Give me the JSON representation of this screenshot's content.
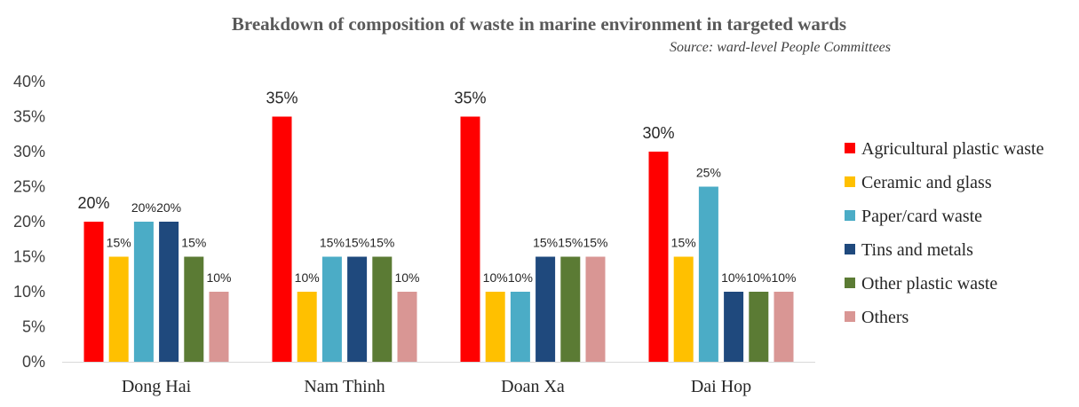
{
  "chart_data": {
    "type": "bar",
    "title": "Breakdown of composition of waste in marine environment in targeted wards",
    "subtitle": "Source: ward-level People Committees",
    "categories": [
      "Dong Hai",
      "Nam Thinh",
      "Doan Xa",
      "Dai Hop"
    ],
    "series": [
      {
        "name": "Agricultural plastic waste",
        "color": "#FF0000",
        "values": [
          20,
          35,
          35,
          30
        ]
      },
      {
        "name": "Ceramic and glass",
        "color": "#FFC000",
        "values": [
          15,
          10,
          10,
          15
        ]
      },
      {
        "name": "Paper/card waste",
        "color": "#4BACC6",
        "values": [
          20,
          15,
          10,
          25
        ]
      },
      {
        "name": "Tins and metals",
        "color": "#1F497D",
        "values": [
          20,
          15,
          15,
          10
        ]
      },
      {
        "name": "Other plastic waste",
        "color": "#5B7B34",
        "values": [
          15,
          15,
          15,
          10
        ]
      },
      {
        "name": "Others",
        "color": "#D99694",
        "values": [
          10,
          10,
          15,
          10
        ]
      }
    ],
    "ylim": [
      0,
      40
    ],
    "yticks": [
      "0%",
      "5%",
      "10%",
      "15%",
      "20%",
      "25%",
      "30%",
      "35%",
      "40%"
    ],
    "value_suffix": "%",
    "grid": false,
    "legend_position": "right"
  }
}
